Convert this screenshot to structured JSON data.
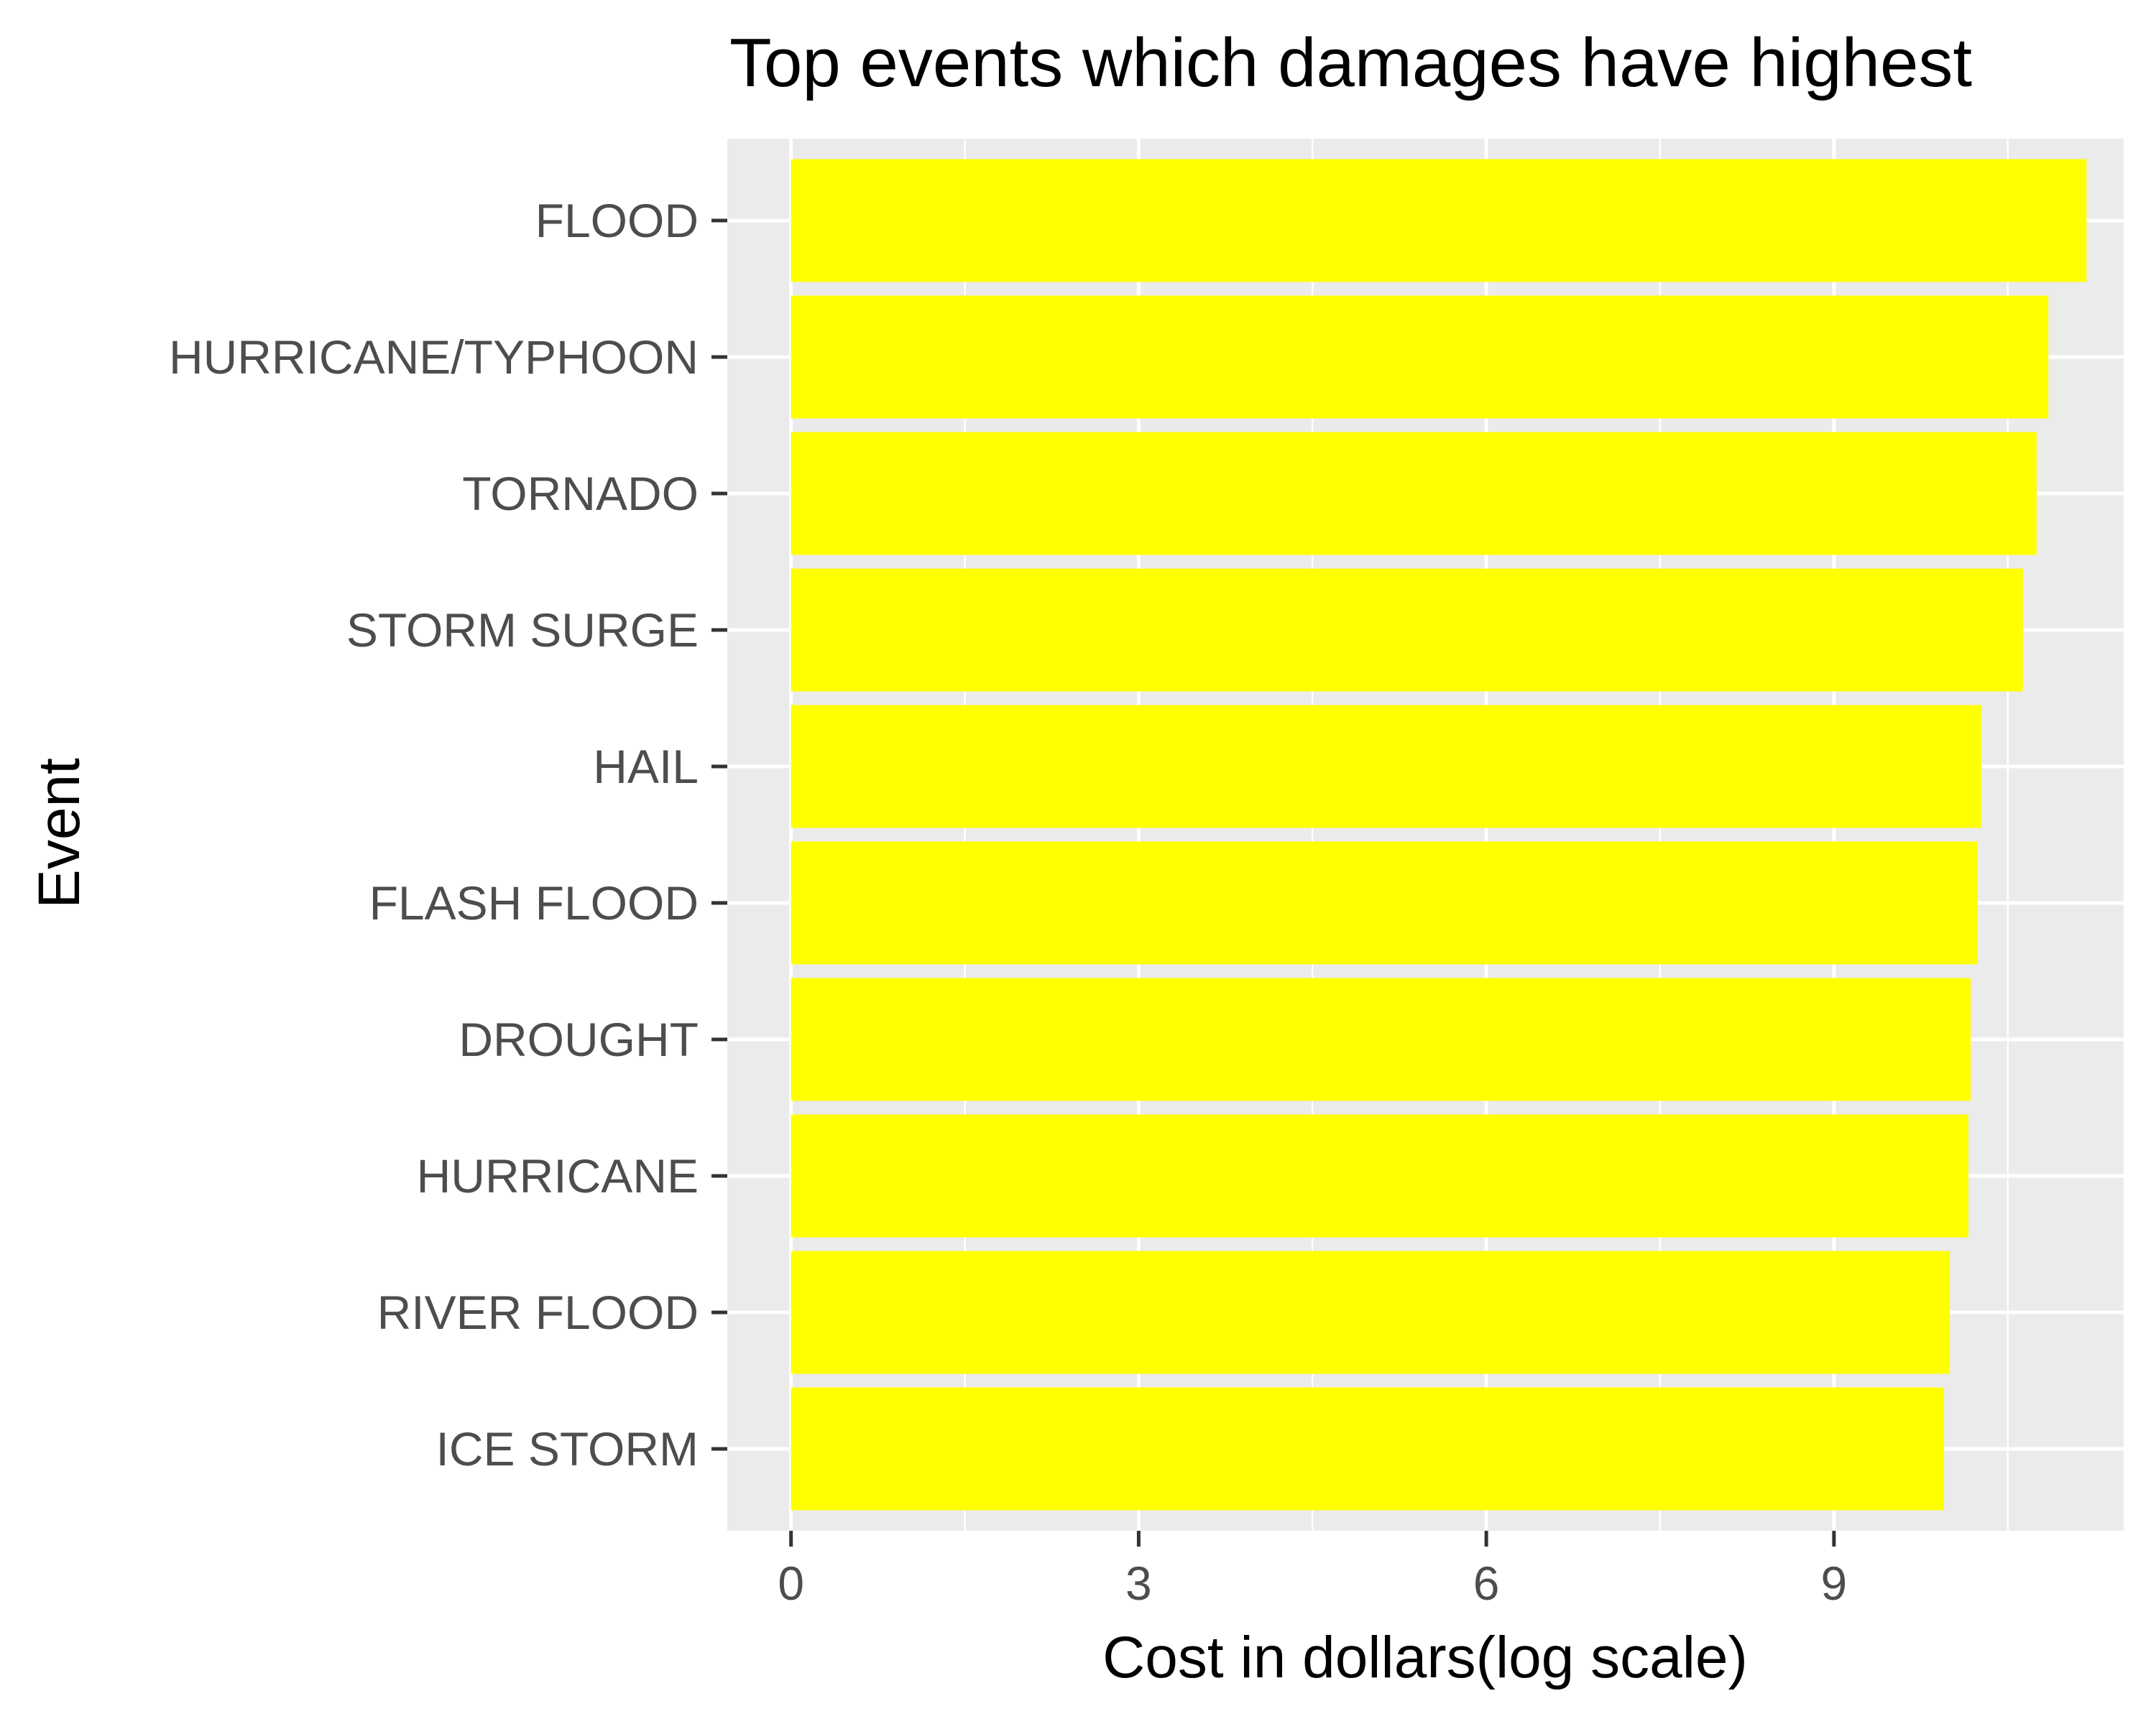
{
  "chart_data": {
    "type": "bar",
    "orientation": "horizontal",
    "title": "Top events which damages have highest",
    "xlabel": "Cost in dollars(log scale)",
    "ylabel": "Event",
    "categories": [
      "FLOOD",
      "HURRICANE/TYPHOON",
      "TORNADO",
      "STORM SURGE",
      "HAIL",
      "FLASH FLOOD",
      "DROUGHT",
      "HURRICANE",
      "RIVER FLOOD",
      "ICE STORM"
    ],
    "values": [
      11.18,
      10.85,
      10.75,
      10.63,
      10.27,
      10.24,
      10.18,
      10.16,
      10.0,
      9.95
    ],
    "xlim": [
      -0.55,
      11.5
    ],
    "xticks": [
      0,
      3,
      6,
      9
    ],
    "xtick_labels": [
      "0",
      "3",
      "6",
      "9"
    ],
    "grid": true,
    "colors": {
      "bar": "#ffff00",
      "panel": "#ebebeb",
      "gridline": "#ffffff",
      "tick_text": "#4d4d4d",
      "tick_mark": "#333333",
      "title": "#000000"
    }
  }
}
